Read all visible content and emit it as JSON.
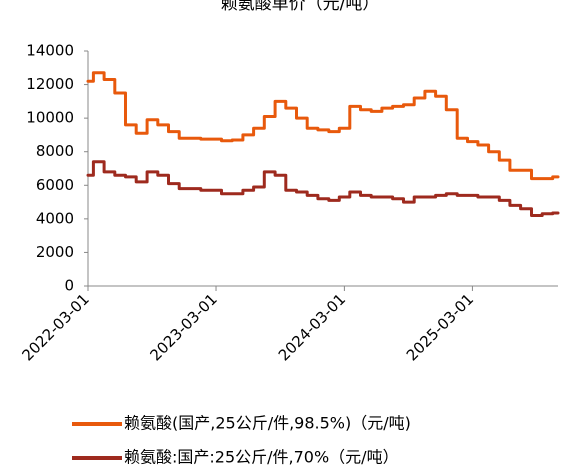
{
  "chart_data": {
    "type": "line",
    "title": "赖氨酸单价（元/吨）",
    "xlabel": "",
    "ylabel": "",
    "ylim": [
      0,
      14000
    ],
    "xlim": [
      "2022-03-01",
      "2025-10-31"
    ],
    "yticks": [
      "0",
      "2000",
      "4000",
      "6000",
      "8000",
      "10000",
      "12000",
      "14000"
    ],
    "xticks": [
      {
        "date": "2022-03-01",
        "label": "2022-03-01"
      },
      {
        "date": "2023-03-01",
        "label": "2023-03-01"
      },
      {
        "date": "2024-03-01",
        "label": "2024-03-01"
      },
      {
        "date": "2025-03-01",
        "label": "2025-03-01"
      }
    ],
    "grid": false,
    "legend_position": "bottom",
    "series": [
      {
        "name": "赖氨酸(国产,25公斤/件,98.5%)（元/吨)",
        "color": "#E8590C",
        "points": [
          [
            "2022-03-01",
            12200
          ],
          [
            "2022-04-01",
            12700
          ],
          [
            "2022-05-01",
            12300
          ],
          [
            "2022-06-01",
            11500
          ],
          [
            "2022-07-01",
            9600
          ],
          [
            "2022-08-01",
            9100
          ],
          [
            "2022-09-01",
            9900
          ],
          [
            "2022-10-01",
            9600
          ],
          [
            "2022-11-01",
            9200
          ],
          [
            "2022-12-01",
            8800
          ],
          [
            "2023-01-01",
            8800
          ],
          [
            "2023-02-01",
            8750
          ],
          [
            "2023-03-01",
            8750
          ],
          [
            "2023-04-01",
            8650
          ],
          [
            "2023-05-01",
            8700
          ],
          [
            "2023-06-01",
            9000
          ],
          [
            "2023-07-01",
            9400
          ],
          [
            "2023-08-01",
            10100
          ],
          [
            "2023-09-01",
            11000
          ],
          [
            "2023-10-01",
            10600
          ],
          [
            "2023-11-01",
            10000
          ],
          [
            "2023-12-01",
            9400
          ],
          [
            "2024-01-01",
            9300
          ],
          [
            "2024-02-01",
            9200
          ],
          [
            "2024-03-01",
            9400
          ],
          [
            "2024-04-01",
            10700
          ],
          [
            "2024-05-01",
            10500
          ],
          [
            "2024-06-01",
            10400
          ],
          [
            "2024-07-01",
            10600
          ],
          [
            "2024-08-01",
            10700
          ],
          [
            "2024-09-01",
            10800
          ],
          [
            "2024-10-01",
            11200
          ],
          [
            "2024-11-01",
            11600
          ],
          [
            "2024-12-01",
            11300
          ],
          [
            "2025-01-01",
            10500
          ],
          [
            "2025-02-01",
            8800
          ],
          [
            "2025-03-01",
            8600
          ],
          [
            "2025-04-01",
            8400
          ],
          [
            "2025-05-01",
            8000
          ],
          [
            "2025-06-01",
            7500
          ],
          [
            "2025-07-01",
            6900
          ],
          [
            "2025-08-01",
            6900
          ],
          [
            "2025-09-01",
            6400
          ],
          [
            "2025-10-01",
            6400
          ],
          [
            "2025-10-31",
            6500
          ]
        ]
      },
      {
        "name": "赖氨酸:国产:25公斤/件,70%（元/吨）",
        "color": "#9E2A1E",
        "points": [
          [
            "2022-03-01",
            6600
          ],
          [
            "2022-04-01",
            7400
          ],
          [
            "2022-05-01",
            6800
          ],
          [
            "2022-06-01",
            6600
          ],
          [
            "2022-07-01",
            6500
          ],
          [
            "2022-08-01",
            6200
          ],
          [
            "2022-09-01",
            6800
          ],
          [
            "2022-10-01",
            6600
          ],
          [
            "2022-11-01",
            6100
          ],
          [
            "2022-12-01",
            5800
          ],
          [
            "2023-01-01",
            5800
          ],
          [
            "2023-02-01",
            5700
          ],
          [
            "2023-03-01",
            5700
          ],
          [
            "2023-04-01",
            5500
          ],
          [
            "2023-05-01",
            5500
          ],
          [
            "2023-06-01",
            5700
          ],
          [
            "2023-07-01",
            5900
          ],
          [
            "2023-08-01",
            6800
          ],
          [
            "2023-09-01",
            6600
          ],
          [
            "2023-10-01",
            5700
          ],
          [
            "2023-11-01",
            5600
          ],
          [
            "2023-12-01",
            5400
          ],
          [
            "2024-01-01",
            5200
          ],
          [
            "2024-02-01",
            5100
          ],
          [
            "2024-03-01",
            5300
          ],
          [
            "2024-04-01",
            5600
          ],
          [
            "2024-05-01",
            5400
          ],
          [
            "2024-06-01",
            5300
          ],
          [
            "2024-07-01",
            5300
          ],
          [
            "2024-08-01",
            5200
          ],
          [
            "2024-09-01",
            5000
          ],
          [
            "2024-10-01",
            5300
          ],
          [
            "2024-11-01",
            5300
          ],
          [
            "2024-12-01",
            5400
          ],
          [
            "2025-01-01",
            5500
          ],
          [
            "2025-02-01",
            5400
          ],
          [
            "2025-03-01",
            5400
          ],
          [
            "2025-04-01",
            5300
          ],
          [
            "2025-05-01",
            5300
          ],
          [
            "2025-06-01",
            5100
          ],
          [
            "2025-07-01",
            4800
          ],
          [
            "2025-08-01",
            4600
          ],
          [
            "2025-09-01",
            4200
          ],
          [
            "2025-10-01",
            4300
          ],
          [
            "2025-10-31",
            4350
          ]
        ]
      }
    ]
  }
}
